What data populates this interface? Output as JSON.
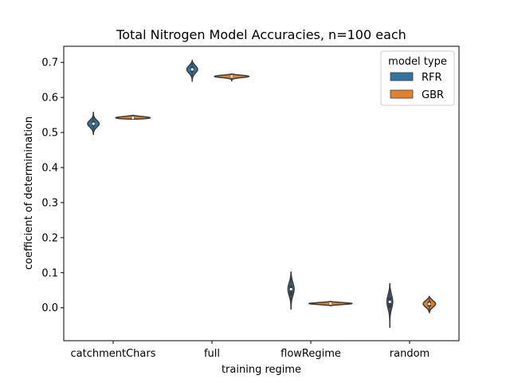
{
  "chart_data": {
    "type": "violin",
    "title": "Total Nitrogen Model Accuracies, n=100 each",
    "xlabel": "training regime",
    "ylabel": "coefficient of determinination",
    "categories": [
      "catchmentChars",
      "full",
      "flowRegime",
      "random"
    ],
    "ylim": [
      -0.094,
      0.746
    ],
    "yticks": [
      0.0,
      0.1,
      0.2,
      0.3,
      0.4,
      0.5,
      0.6,
      0.7
    ],
    "ytick_labels": [
      "0.0",
      "0.1",
      "0.2",
      "0.3",
      "0.4",
      "0.5",
      "0.6",
      "0.7"
    ],
    "grid": false,
    "legend": {
      "title": "model type",
      "placement": "top-right"
    },
    "series": [
      {
        "name": "RFR",
        "color": "#3274a1",
        "distributions": [
          {
            "category": "catchmentChars",
            "median": 0.525,
            "q1": 0.518,
            "q3": 0.533,
            "min": 0.493,
            "max": 0.559
          },
          {
            "category": "full",
            "median": 0.68,
            "q1": 0.672,
            "q3": 0.688,
            "min": 0.645,
            "max": 0.705
          },
          {
            "category": "flowRegime",
            "median": 0.053,
            "q1": 0.035,
            "q3": 0.063,
            "min": -0.005,
            "max": 0.103
          },
          {
            "category": "random",
            "median": 0.017,
            "q1": 0.0,
            "q3": 0.03,
            "min": -0.057,
            "max": 0.07
          }
        ]
      },
      {
        "name": "GBR",
        "color": "#e1812c",
        "distributions": [
          {
            "category": "catchmentChars",
            "median": 0.542,
            "q1": 0.54,
            "q3": 0.545,
            "min": 0.538,
            "max": 0.549
          },
          {
            "category": "full",
            "median": 0.66,
            "q1": 0.658,
            "q3": 0.663,
            "min": 0.646,
            "max": 0.667
          },
          {
            "category": "flowRegime",
            "median": 0.012,
            "q1": 0.01,
            "q3": 0.014,
            "min": 0.006,
            "max": 0.018
          },
          {
            "category": "random",
            "median": 0.011,
            "q1": 0.004,
            "q3": 0.018,
            "min": -0.015,
            "max": 0.032
          }
        ]
      }
    ]
  }
}
